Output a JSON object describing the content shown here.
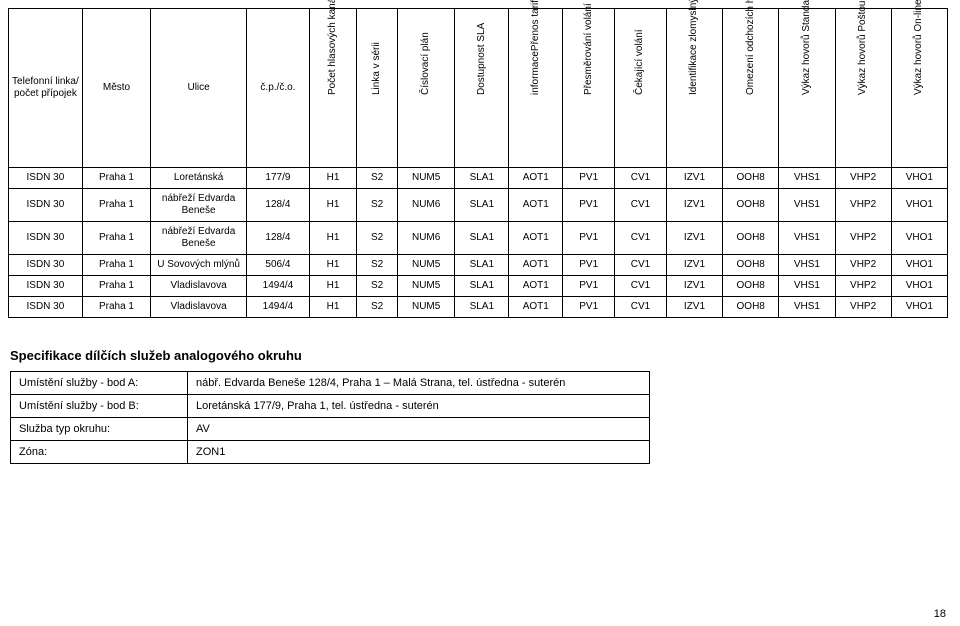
{
  "headers": {
    "c0": "Telefonní linka/ počet přípojek",
    "c1": "Město",
    "c2": "Ulice",
    "c3": "č.p./č.o.",
    "c4": "Počet hlasových kanálů",
    "c5": "Linka v sérii",
    "c6": "Číslovací plán",
    "c7": "Dostupnost SLA",
    "c8": "informacePřenos tarif. impulsů a časové",
    "c9": "Přesměrování volání",
    "c10": "Čekající volání",
    "c11": "Identifikace zlomyslných volání",
    "c12": "Omezení odchozích hovorů",
    "c13": "Výkaz hovorů Standardní",
    "c14": "Výkaz hovorů Poštou",
    "c15": "Výkaz hovorů On-line"
  },
  "rows": [
    {
      "c0": "ISDN 30",
      "c1": "Praha 1",
      "c2": "Loretánská",
      "c3": "177/9",
      "c4": "H1",
      "c5": "S2",
      "c6": "NUM5",
      "c7": "SLA1",
      "c8": "AOT1",
      "c9": "PV1",
      "c10": "CV1",
      "c11": "IZV1",
      "c12": "OOH8",
      "c13": "VHS1",
      "c14": "VHP2",
      "c15": "VHO1"
    },
    {
      "c0": "ISDN 30",
      "c1": "Praha 1",
      "c2": "nábřeží Edvarda Beneše",
      "c3": "128/4",
      "c4": "H1",
      "c5": "S2",
      "c6": "NUM6",
      "c7": "SLA1",
      "c8": "AOT1",
      "c9": "PV1",
      "c10": "CV1",
      "c11": "IZV1",
      "c12": "OOH8",
      "c13": "VHS1",
      "c14": "VHP2",
      "c15": "VHO1"
    },
    {
      "c0": "ISDN 30",
      "c1": "Praha 1",
      "c2": "nábřeží Edvarda Beneše",
      "c3": "128/4",
      "c4": "H1",
      "c5": "S2",
      "c6": "NUM6",
      "c7": "SLA1",
      "c8": "AOT1",
      "c9": "PV1",
      "c10": "CV1",
      "c11": "IZV1",
      "c12": "OOH8",
      "c13": "VHS1",
      "c14": "VHP2",
      "c15": "VHO1"
    },
    {
      "c0": "ISDN 30",
      "c1": "Praha 1",
      "c2": "U Sovových mlýnů",
      "c3": "506/4",
      "c4": "H1",
      "c5": "S2",
      "c6": "NUM5",
      "c7": "SLA1",
      "c8": "AOT1",
      "c9": "PV1",
      "c10": "CV1",
      "c11": "IZV1",
      "c12": "OOH8",
      "c13": "VHS1",
      "c14": "VHP2",
      "c15": "VHO1"
    },
    {
      "c0": "ISDN 30",
      "c1": "Praha 1",
      "c2": "Vladislavova",
      "c3": "1494/4",
      "c4": "H1",
      "c5": "S2",
      "c6": "NUM5",
      "c7": "SLA1",
      "c8": "AOT1",
      "c9": "PV1",
      "c10": "CV1",
      "c11": "IZV1",
      "c12": "OOH8",
      "c13": "VHS1",
      "c14": "VHP2",
      "c15": "VHO1"
    },
    {
      "c0": "ISDN 30",
      "c1": "Praha 1",
      "c2": "Vladislavova",
      "c3": "1494/4",
      "c4": "H1",
      "c5": "S2",
      "c6": "NUM5",
      "c7": "SLA1",
      "c8": "AOT1",
      "c9": "PV1",
      "c10": "CV1",
      "c11": "IZV1",
      "c12": "OOH8",
      "c13": "VHS1",
      "c14": "VHP2",
      "c15": "VHO1"
    }
  ],
  "section_title": "Specifikace dílčích služeb analogového okruhu",
  "spec": [
    {
      "label": "Umístění služby - bod A:",
      "value": "nábř. Edvarda Beneše 128/4, Praha 1 – Malá Strana, tel. ústředna - suterén"
    },
    {
      "label": "Umístění služby - bod B:",
      "value": "Loretánská 177/9, Praha 1, tel. ústředna - suterén"
    },
    {
      "label": "Služba typ okruhu:",
      "value": "AV"
    },
    {
      "label": "Zóna:",
      "value": "ZON1"
    }
  ],
  "page_number": "18",
  "table_style": {
    "colwidths": {
      "c0": 60,
      "c1": 55,
      "c2": 80,
      "c3": 50,
      "c4": 36,
      "c5": 30,
      "c6": 45,
      "c7": 42,
      "c8": 42,
      "c9": 40,
      "c10": 40,
      "c11": 44,
      "c12": 44,
      "c13": 44,
      "c14": 44,
      "c15": 44
    }
  }
}
